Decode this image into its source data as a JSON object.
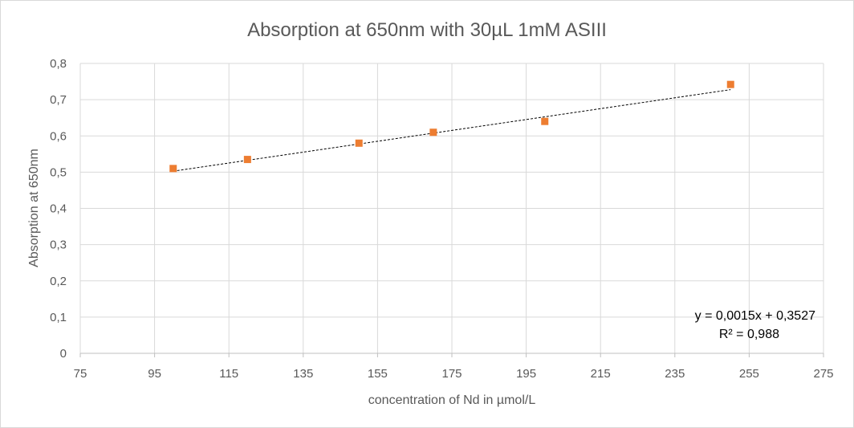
{
  "chart_data": {
    "type": "scatter",
    "title": "Absorption at 650nm with 30µL 1mM ASIII",
    "xlabel": "concentration of Nd in µmol/L",
    "ylabel": "Absorption at 650nm",
    "xlim": [
      75,
      275
    ],
    "ylim": [
      0,
      0.8
    ],
    "x_ticks": [
      75,
      95,
      115,
      135,
      155,
      175,
      195,
      215,
      235,
      255,
      275
    ],
    "x_tick_labels": [
      "75",
      "95",
      "115",
      "135",
      "155",
      "175",
      "195",
      "215",
      "235",
      "255",
      "275"
    ],
    "y_ticks": [
      0,
      0.1,
      0.2,
      0.3,
      0.4,
      0.5,
      0.6,
      0.7,
      0.8
    ],
    "y_tick_labels": [
      "0",
      "0,1",
      "0,2",
      "0,3",
      "0,4",
      "0,5",
      "0,6",
      "0,7",
      "0,8"
    ],
    "grid": true,
    "legend": "none",
    "series": [
      {
        "color": "#ed7d31",
        "marker": "square",
        "x": [
          100,
          120,
          150,
          170,
          200,
          250
        ],
        "y": [
          0.51,
          0.535,
          0.58,
          0.61,
          0.64,
          0.742
        ]
      }
    ],
    "trendline": {
      "type": "linear",
      "slope": 0.0015,
      "intercept": 0.3527,
      "x_range": [
        100,
        250
      ],
      "style": "dotted",
      "color": "#000000",
      "equation_label": "y = 0,0015x + 0,3527",
      "r2_label": "R² = 0,988"
    }
  }
}
